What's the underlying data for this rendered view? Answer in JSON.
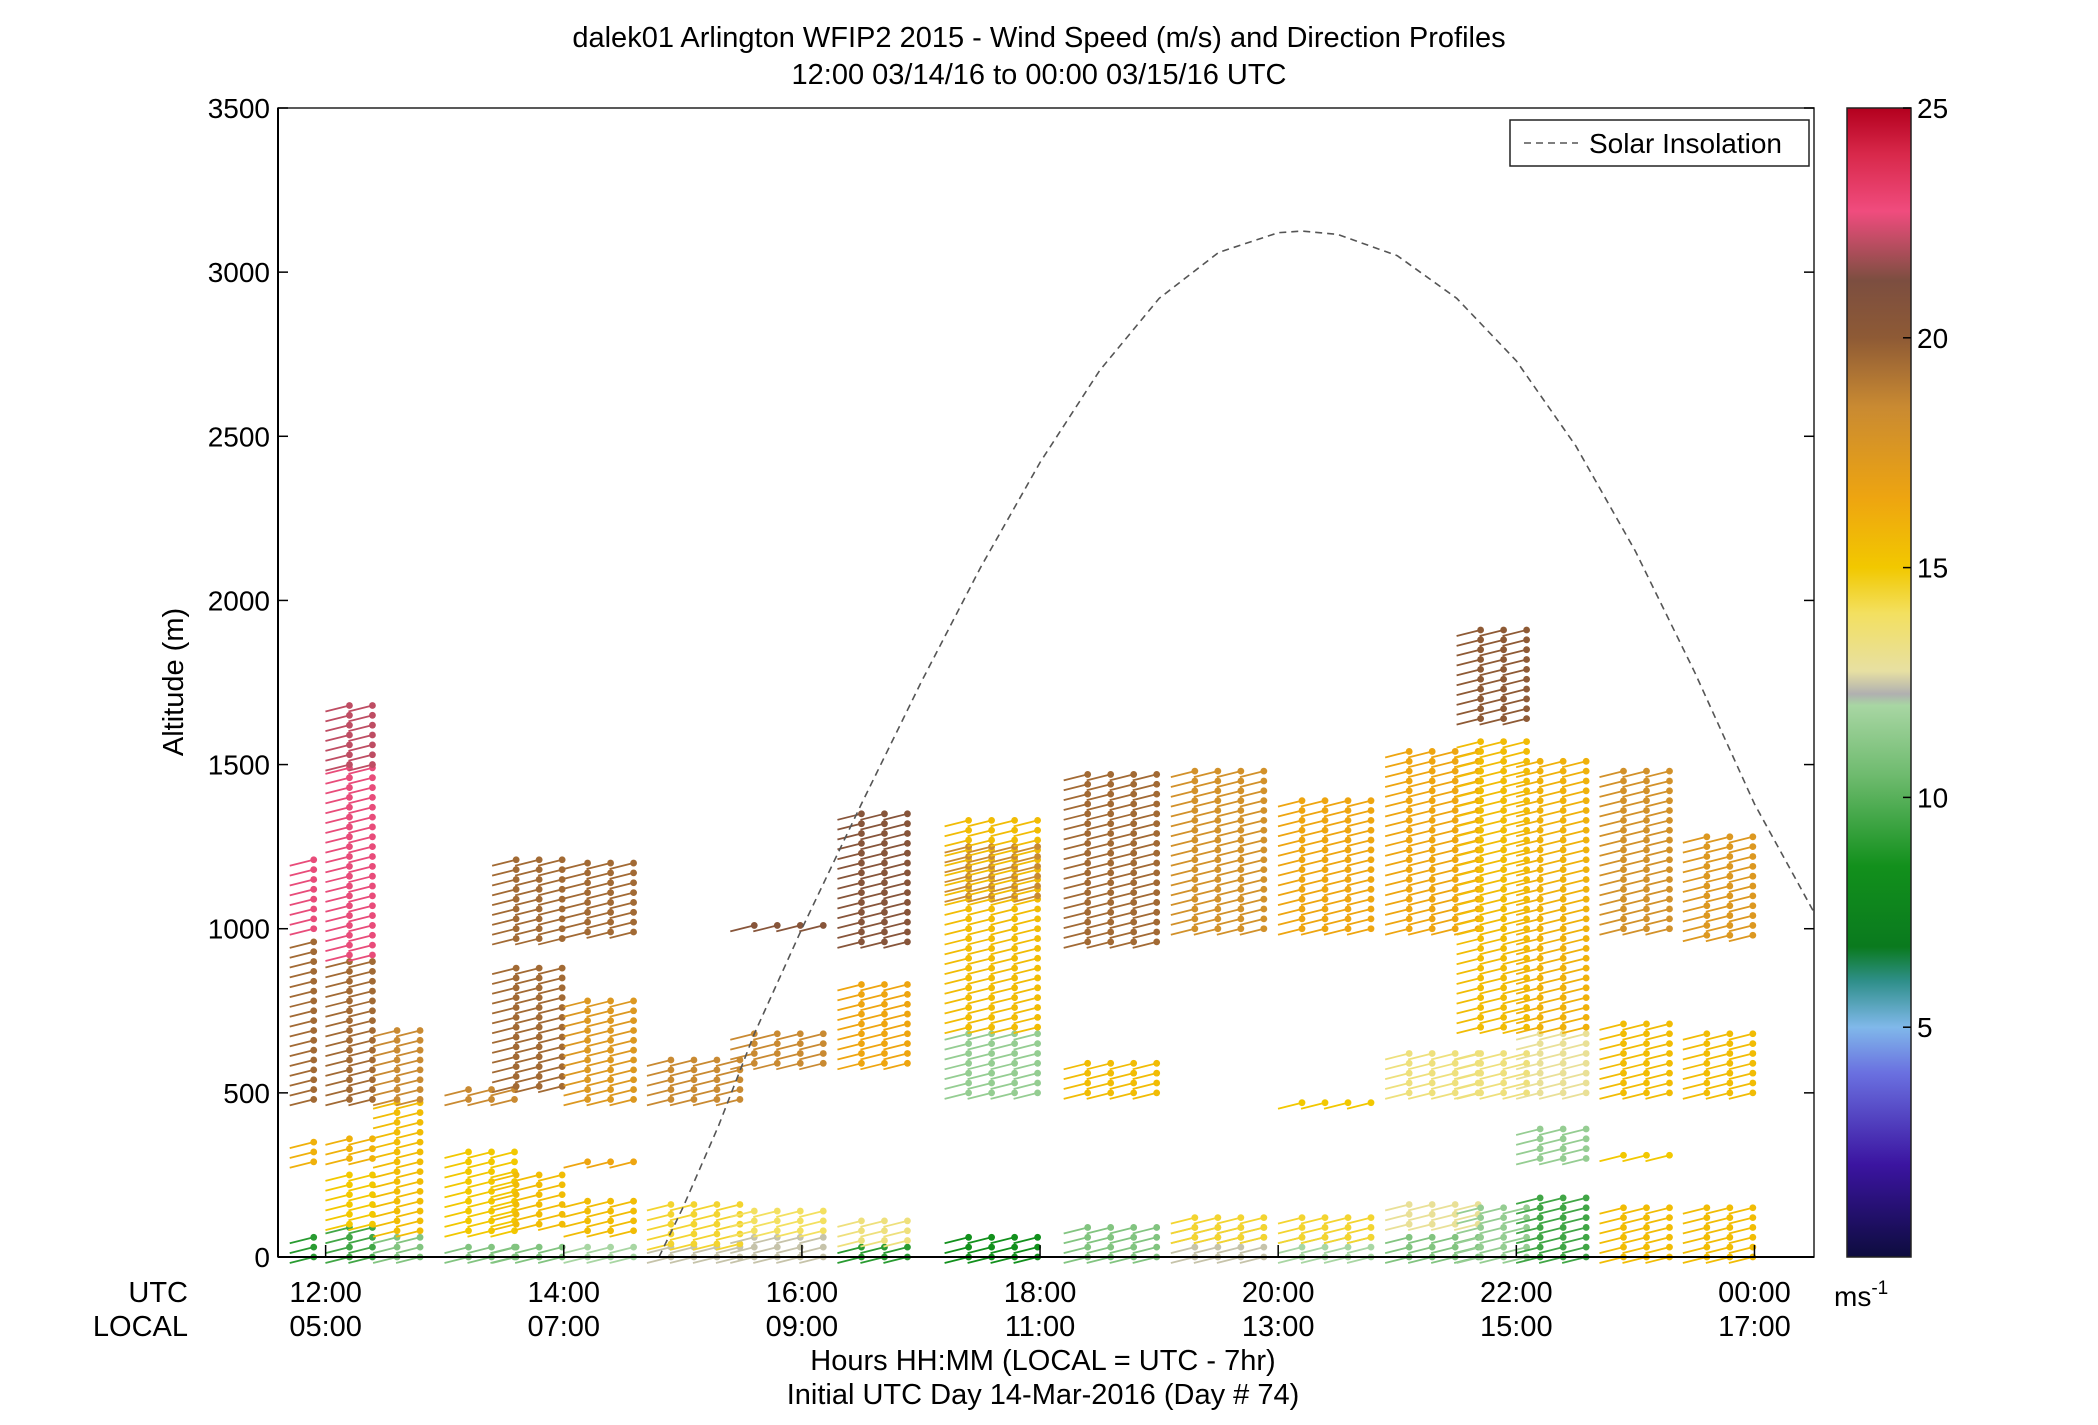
{
  "title_line1": "dalek01 Arlington WFIP2 2015 - Wind Speed (m/s) and Direction Profiles",
  "title_line2": "12:00 03/14/16 to 00:00 03/15/16  UTC",
  "xlabel_utc": "UTC",
  "xlabel_local": "LOCAL",
  "xlabel_line1": "Hours HH:MM  (LOCAL = UTC - 7hr)",
  "xlabel_line2": "Initial UTC Day 14-Mar-2016 (Day # 74)",
  "colorbar_unit_base": "ms",
  "colorbar_unit_exp": "-1",
  "chart_data": {
    "type": "scatter",
    "title": "dalek01 Arlington WFIP2 2015 - Wind Speed (m/s) and Direction Profiles",
    "subtitle": "12:00 03/14/16 to 00:00 03/15/16  UTC",
    "ylabel": "Altitude (m)",
    "xlim_hours_utc": [
      11.6,
      24.5
    ],
    "ylim": [
      0,
      3500
    ],
    "yticks": [
      0,
      500,
      1000,
      1500,
      2000,
      2500,
      3000,
      3500
    ],
    "xticks_hours_utc": [
      12,
      14,
      16,
      18,
      20,
      22,
      24
    ],
    "xtick_labels_utc": [
      "12:00",
      "14:00",
      "16:00",
      "18:00",
      "20:00",
      "22:00",
      "00:00"
    ],
    "xtick_labels_local": [
      "05:00",
      "07:00",
      "09:00",
      "11:00",
      "13:00",
      "15:00",
      "17:00"
    ],
    "legend": {
      "label": "Solar Insolation",
      "position": "top-right"
    },
    "colorbar": {
      "min": 0,
      "max": 25,
      "ticks": [
        5,
        10,
        15,
        20,
        25
      ],
      "unit": "ms-1"
    },
    "grid": false,
    "series": [
      {
        "name": "Solar Insolation",
        "style": "dashed",
        "color": "#555555",
        "x": [
          14.8,
          15.0,
          15.3,
          15.6,
          16.0,
          16.5,
          17.0,
          17.5,
          18.0,
          18.5,
          19.0,
          19.5,
          20.0,
          20.2,
          20.5,
          21.0,
          21.5,
          22.0,
          22.5,
          23.0,
          23.5,
          24.0,
          24.5
        ],
        "y": [
          0,
          150,
          400,
          680,
          1000,
          1380,
          1750,
          2100,
          2420,
          2700,
          2920,
          3060,
          3120,
          3125,
          3115,
          3050,
          2920,
          2730,
          2470,
          2150,
          1780,
          1380,
          1050
        ]
      }
    ],
    "wind_profiles": [
      {
        "hour_utc": 11.9,
        "cols": 1,
        "segments": [
          {
            "alt": [
              0,
              60
            ],
            "spd": 9
          },
          {
            "alt": [
              290,
              370
            ],
            "spd": 16
          },
          {
            "alt": [
              480,
              970
            ],
            "spd": 19.5
          },
          {
            "alt": [
              1000,
              1210
            ],
            "spd": 22.5
          }
        ]
      },
      {
        "hour_utc": 12.2,
        "cols": 2,
        "segments": [
          {
            "alt": [
              0,
              90
            ],
            "spd": 9.5
          },
          {
            "alt": [
              100,
              270
            ],
            "spd": 15
          },
          {
            "alt": [
              300,
              360
            ],
            "spd": 16
          },
          {
            "alt": [
              480,
              900
            ],
            "spd": 19.5
          },
          {
            "alt": [
              920,
              1490
            ],
            "spd": 22.5
          },
          {
            "alt": [
              1500,
              1700
            ],
            "spd": 22
          }
        ]
      },
      {
        "hour_utc": 12.6,
        "cols": 2,
        "segments": [
          {
            "alt": [
              0,
              60
            ],
            "spd": 11
          },
          {
            "alt": [
              80,
              480
            ],
            "spd": 15.5
          },
          {
            "alt": [
              480,
              690
            ],
            "spd": 18.5
          }
        ]
      },
      {
        "hour_utc": 13.2,
        "cols": 3,
        "segments": [
          {
            "alt": [
              0,
              40
            ],
            "spd": 11
          },
          {
            "alt": [
              80,
              340
            ],
            "spd": 15
          },
          {
            "alt": [
              480,
              530
            ],
            "spd": 18.5
          }
        ]
      },
      {
        "hour_utc": 13.6,
        "cols": 3,
        "segments": [
          {
            "alt": [
              0,
              30
            ],
            "spd": 11
          },
          {
            "alt": [
              100,
              260
            ],
            "spd": 15.5
          },
          {
            "alt": [
              520,
              880
            ],
            "spd": 19.5
          },
          {
            "alt": [
              970,
              1210
            ],
            "spd": 19.5
          }
        ]
      },
      {
        "hour_utc": 14.2,
        "cols": 3,
        "segments": [
          {
            "alt": [
              0,
              30
            ],
            "spd": 12
          },
          {
            "alt": [
              80,
              190
            ],
            "spd": 15.5
          },
          {
            "alt": [
              290,
              310
            ],
            "spd": 16.5
          },
          {
            "alt": [
              480,
              800
            ],
            "spd": 17.5
          },
          {
            "alt": [
              990,
              1210
            ],
            "spd": 19.5
          }
        ]
      },
      {
        "hour_utc": 14.9,
        "cols": 4,
        "segments": [
          {
            "alt": [
              0,
              30
            ],
            "spd": 12.5
          },
          {
            "alt": [
              40,
              180
            ],
            "spd": 14.5
          },
          {
            "alt": [
              480,
              620
            ],
            "spd": 18.5
          }
        ]
      },
      {
        "hour_utc": 15.6,
        "cols": 4,
        "segments": [
          {
            "alt": [
              0,
              80
            ],
            "spd": 12.5
          },
          {
            "alt": [
              80,
              140
            ],
            "spd": 14
          },
          {
            "alt": [
              590,
              690
            ],
            "spd": 18.5
          },
          {
            "alt": [
              1010,
              1020
            ],
            "spd": 20.5
          }
        ]
      },
      {
        "hour_utc": 16.5,
        "cols": 3,
        "segments": [
          {
            "alt": [
              0,
              40
            ],
            "spd": 9
          },
          {
            "alt": [
              50,
              110
            ],
            "spd": 13.5
          },
          {
            "alt": [
              590,
              840
            ],
            "spd": 16.5
          },
          {
            "alt": [
              960,
              1370
            ],
            "spd": 20.5
          }
        ]
      },
      {
        "hour_utc": 17.4,
        "cols": 4,
        "segments": [
          {
            "alt": [
              0,
              60
            ],
            "spd": 8.5
          },
          {
            "alt": [
              500,
              690
            ],
            "spd": 11.5
          },
          {
            "alt": [
              700,
              1330
            ],
            "spd": 15.5
          },
          {
            "alt": [
              1100,
              1260
            ],
            "spd": 18.5
          }
        ]
      },
      {
        "hour_utc": 18.4,
        "cols": 4,
        "segments": [
          {
            "alt": [
              0,
              100
            ],
            "spd": 11
          },
          {
            "alt": [
              500,
              590
            ],
            "spd": 15.5
          },
          {
            "alt": [
              960,
              1490
            ],
            "spd": 19.5
          }
        ]
      },
      {
        "hour_utc": 19.3,
        "cols": 4,
        "segments": [
          {
            "alt": [
              0,
              100
            ],
            "spd": 12.5
          },
          {
            "alt": [
              60,
              130
            ],
            "spd": 14.5
          },
          {
            "alt": [
              1000,
              1490
            ],
            "spd": 18
          }
        ]
      },
      {
        "hour_utc": 20.2,
        "cols": 4,
        "segments": [
          {
            "alt": [
              0,
              60
            ],
            "spd": 12
          },
          {
            "alt": [
              60,
              130
            ],
            "spd": 14.5
          },
          {
            "alt": [
              470,
              490
            ],
            "spd": 15
          },
          {
            "alt": [
              1000,
              1400
            ],
            "spd": 16.5
          }
        ]
      },
      {
        "hour_utc": 21.1,
        "cols": 4,
        "segments": [
          {
            "alt": [
              0,
              80
            ],
            "spd": 11
          },
          {
            "alt": [
              100,
              170
            ],
            "spd": 13
          },
          {
            "alt": [
              500,
              640
            ],
            "spd": 13.5
          },
          {
            "alt": [
              1000,
              1540
            ],
            "spd": 16.5
          }
        ]
      },
      {
        "hour_utc": 21.7,
        "cols": 3,
        "segments": [
          {
            "alt": [
              0,
              160
            ],
            "spd": 11.5
          },
          {
            "alt": [
              500,
              640
            ],
            "spd": 13.5
          },
          {
            "alt": [
              700,
              1580
            ],
            "spd": 15.5
          },
          {
            "alt": [
              1640,
              1910
            ],
            "spd": 20
          }
        ]
      },
      {
        "hour_utc": 22.2,
        "cols": 3,
        "segments": [
          {
            "alt": [
              0,
              180
            ],
            "spd": 9.5
          },
          {
            "alt": [
              300,
              400
            ],
            "spd": 11.5
          },
          {
            "alt": [
              500,
              700
            ],
            "spd": 13
          },
          {
            "alt": [
              700,
              1530
            ],
            "spd": 16
          }
        ]
      },
      {
        "hour_utc": 22.9,
        "cols": 3,
        "segments": [
          {
            "alt": [
              0,
              170
            ],
            "spd": 15.5
          },
          {
            "alt": [
              310,
              320
            ],
            "spd": 15
          },
          {
            "alt": [
              500,
              720
            ],
            "spd": 15.5
          },
          {
            "alt": [
              1000,
              1490
            ],
            "spd": 18
          }
        ]
      },
      {
        "hour_utc": 23.6,
        "cols": 3,
        "segments": [
          {
            "alt": [
              0,
              170
            ],
            "spd": 15.5
          },
          {
            "alt": [
              500,
              690
            ],
            "spd": 15.5
          },
          {
            "alt": [
              980,
              1280
            ],
            "spd": 17.5
          }
        ]
      }
    ]
  }
}
